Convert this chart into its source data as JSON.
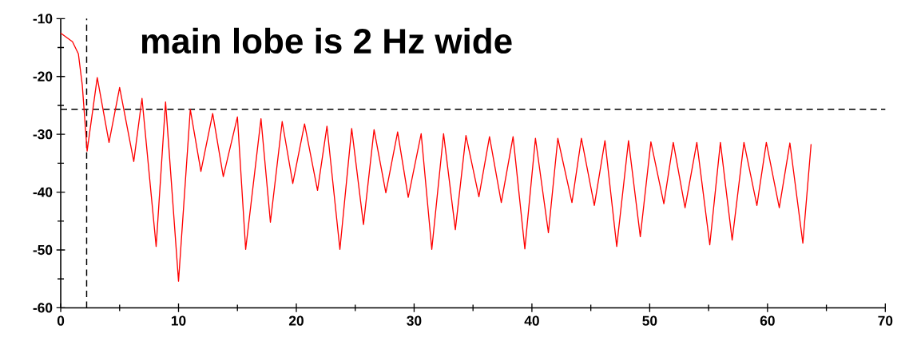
{
  "chart_data": {
    "type": "line",
    "annotations": [
      "main lobe is 2 Hz wide"
    ],
    "series": [
      {
        "color": "#ff0000",
        "x": [
          0,
          1.0,
          1.5,
          1.83,
          2.24,
          3.1,
          4.1,
          5.0,
          6.2,
          6.9,
          8.1,
          8.9,
          10.0,
          11.0,
          11.9,
          12.9,
          13.8,
          15.0,
          15.7,
          17.0,
          17.8,
          18.8,
          19.7,
          20.7,
          21.8,
          22.6,
          23.7,
          24.7,
          25.7,
          26.6,
          27.6,
          28.6,
          29.5,
          30.6,
          31.5,
          32.5,
          33.5,
          34.4,
          35.5,
          36.4,
          37.4,
          38.4,
          39.4,
          40.3,
          41.4,
          42.2,
          43.4,
          44.2,
          45.3,
          46.2,
          47.2,
          48.2,
          49.2,
          50.1,
          51.2,
          52.0,
          53.0,
          54.0,
          55.1,
          56.0,
          57.0,
          58.0,
          59.1,
          59.9,
          61.0,
          61.9,
          63.0,
          63.7
        ],
        "values": [
          -12.5,
          -14,
          -16.1,
          -21.5,
          -32.9,
          -20.2,
          -31.4,
          -21.9,
          -34.7,
          -23.8,
          -49.4,
          -24.4,
          -55.4,
          -25.7,
          -36.4,
          -26.4,
          -37.3,
          -27.0,
          -49.9,
          -27.3,
          -45.2,
          -27.8,
          -38.5,
          -28.2,
          -39.7,
          -28.6,
          -49.9,
          -29.0,
          -45.6,
          -29.2,
          -40.1,
          -29.6,
          -40.9,
          -29.9,
          -49.9,
          -29.9,
          -46.5,
          -30.2,
          -40.8,
          -30.4,
          -41.8,
          -30.4,
          -49.8,
          -30.7,
          -47.0,
          -30.7,
          -41.8,
          -30.7,
          -42.3,
          -31.1,
          -49.4,
          -31.1,
          -47.7,
          -31.3,
          -42.0,
          -31.4,
          -42.7,
          -31.4,
          -49.1,
          -31.4,
          -48.3,
          -31.4,
          -42.3,
          -31.4,
          -42.7,
          -31.5,
          -48.8,
          -31.7
        ]
      }
    ],
    "xlim": [
      0,
      70
    ],
    "ylim": [
      -60,
      -10
    ],
    "xticks": [
      0,
      10,
      20,
      30,
      40,
      50,
      60,
      70
    ],
    "yticks": [
      -60,
      -50,
      -40,
      -30,
      -20,
      -10
    ],
    "ref_lines": [
      {
        "axis": "x",
        "value": 2.2,
        "color": "#000000",
        "line_style": "dashed"
      },
      {
        "axis": "y",
        "value": -25.7,
        "color": "#000000",
        "line_style": "dashed"
      }
    ],
    "marker": "none",
    "line_style": "solid"
  }
}
